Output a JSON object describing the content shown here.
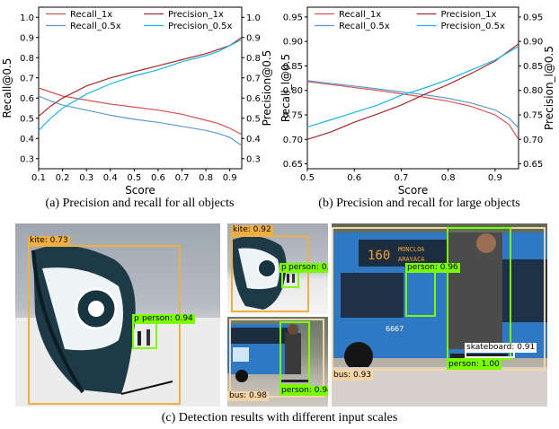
{
  "chart_data": [
    {
      "type": "line",
      "xlabel": "Score",
      "ylabel_left": "Recall@0.5",
      "ylabel_right": "Precision@0.5",
      "xlim": [
        0.1,
        0.95
      ],
      "ylim": [
        0.25,
        1.05
      ],
      "xticks": [
        "0.1",
        "0.2",
        "0.3",
        "0.4",
        "0.5",
        "0.6",
        "0.7",
        "0.8",
        "0.9"
      ],
      "yticks": [
        "0.3",
        "0.4",
        "0.5",
        "0.6",
        "0.7",
        "0.8",
        "0.9",
        "1.0"
      ],
      "legend": "top",
      "series": [
        {
          "name": "Recall_1x",
          "color": "#d9534f",
          "x": [
            0.1,
            0.15,
            0.2,
            0.3,
            0.4,
            0.5,
            0.6,
            0.7,
            0.8,
            0.85,
            0.9,
            0.95
          ],
          "y": [
            0.65,
            0.63,
            0.61,
            0.59,
            0.57,
            0.555,
            0.54,
            0.52,
            0.49,
            0.475,
            0.45,
            0.42
          ]
        },
        {
          "name": "Recall_0.5x",
          "color": "#5b9bd5",
          "x": [
            0.1,
            0.15,
            0.2,
            0.3,
            0.4,
            0.5,
            0.6,
            0.7,
            0.8,
            0.85,
            0.9,
            0.95
          ],
          "y": [
            0.61,
            0.585,
            0.565,
            0.54,
            0.515,
            0.495,
            0.48,
            0.46,
            0.44,
            0.425,
            0.405,
            0.365
          ]
        },
        {
          "name": "Precision_1x",
          "color": "#a52a2a",
          "x": [
            0.1,
            0.15,
            0.2,
            0.3,
            0.4,
            0.5,
            0.6,
            0.7,
            0.8,
            0.85,
            0.9,
            0.95
          ],
          "y": [
            0.51,
            0.56,
            0.6,
            0.66,
            0.7,
            0.73,
            0.76,
            0.79,
            0.82,
            0.84,
            0.86,
            0.9
          ]
        },
        {
          "name": "Precision_0.5x",
          "color": "#1fb5e8",
          "x": [
            0.1,
            0.15,
            0.2,
            0.3,
            0.4,
            0.5,
            0.6,
            0.7,
            0.8,
            0.85,
            0.9,
            0.95
          ],
          "y": [
            0.44,
            0.5,
            0.55,
            0.62,
            0.67,
            0.71,
            0.74,
            0.78,
            0.81,
            0.83,
            0.86,
            0.89
          ]
        }
      ]
    },
    {
      "type": "line",
      "xlabel": "Score",
      "ylabel_left": "Recall_l@0.5",
      "ylabel_right": "Precision_l@0.5",
      "xlim": [
        0.5,
        0.95
      ],
      "ylim": [
        0.64,
        0.97
      ],
      "xticks": [
        "0.5",
        "0.6",
        "0.7",
        "0.8",
        "0.9"
      ],
      "yticks": [
        "0.65",
        "0.70",
        "0.75",
        "0.80",
        "0.85",
        "0.90",
        "0.95"
      ],
      "legend": "top",
      "series": [
        {
          "name": "Recall_1x",
          "color": "#d9534f",
          "x": [
            0.5,
            0.55,
            0.6,
            0.65,
            0.7,
            0.75,
            0.8,
            0.85,
            0.9,
            0.93,
            0.95
          ],
          "y": [
            0.818,
            0.812,
            0.806,
            0.8,
            0.793,
            0.786,
            0.778,
            0.767,
            0.75,
            0.73,
            0.7
          ]
        },
        {
          "name": "Recall_0.5x",
          "color": "#5b9bd5",
          "x": [
            0.5,
            0.55,
            0.6,
            0.65,
            0.7,
            0.75,
            0.8,
            0.85,
            0.9,
            0.93,
            0.95
          ],
          "y": [
            0.82,
            0.814,
            0.809,
            0.803,
            0.797,
            0.791,
            0.784,
            0.774,
            0.76,
            0.743,
            0.723
          ]
        },
        {
          "name": "Precision_1x",
          "color": "#a52a2a",
          "x": [
            0.5,
            0.55,
            0.6,
            0.65,
            0.7,
            0.75,
            0.8,
            0.85,
            0.9,
            0.95
          ],
          "y": [
            0.7,
            0.715,
            0.735,
            0.752,
            0.77,
            0.792,
            0.812,
            0.835,
            0.86,
            0.895
          ]
        },
        {
          "name": "Precision_0.5x",
          "color": "#1fb5e8",
          "x": [
            0.5,
            0.55,
            0.6,
            0.65,
            0.7,
            0.75,
            0.8,
            0.85,
            0.9,
            0.95
          ],
          "y": [
            0.725,
            0.74,
            0.755,
            0.77,
            0.79,
            0.805,
            0.822,
            0.842,
            0.862,
            0.89
          ]
        }
      ]
    }
  ],
  "captions": {
    "a": "(a) Precision and recall for all objects",
    "b": "(b) Precision and recall for large objects",
    "c": "(c) Detection results with different input scales"
  },
  "detections": {
    "kite_large": {
      "kite": "kite: 0.73",
      "person": "person: 0.94",
      "person_prefix": "p"
    },
    "kite_small": {
      "kite": "kite: 0.92",
      "person": "person: 0.85",
      "person_prefix": "p"
    },
    "bus_small": {
      "bus": "bus: 0.98",
      "person": "person: 0.94"
    },
    "bus_large": {
      "person_bg": "person: 0.96",
      "skateboard": "skateboard: 0.91",
      "person": "person: 1.00",
      "bus": "bus: 0.93",
      "bus_route": "160",
      "bus_sign_1": "MONCLOA",
      "bus_sign_2": "ARAVACA",
      "bus_plate": "6667"
    }
  },
  "colors": {
    "kite_box": "#f0b040",
    "person_box": "#7cfc00",
    "bus_box": "#f5d5a8",
    "skateboard_box": "#ffffff"
  }
}
